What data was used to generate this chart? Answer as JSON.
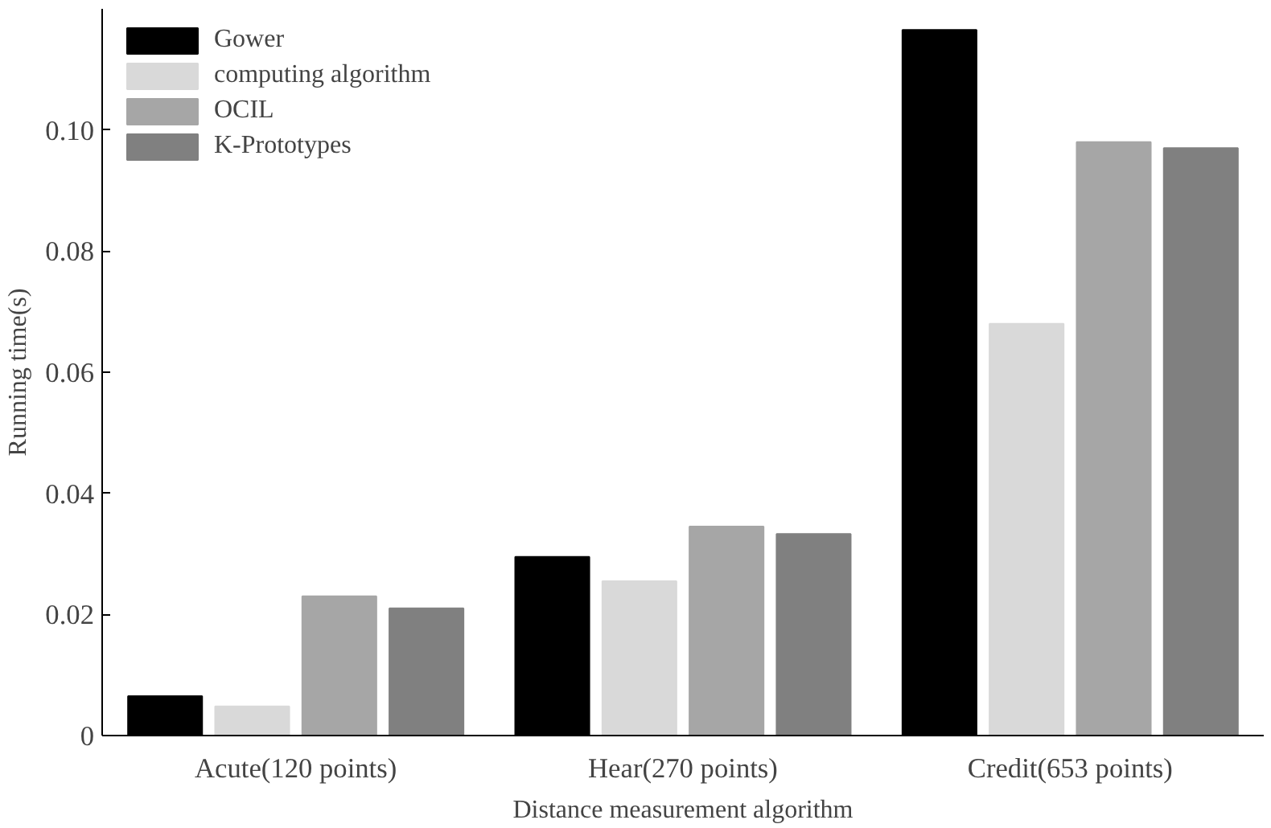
{
  "chart_data": {
    "type": "bar",
    "xlabel": "Distance measurement algorithm",
    "ylabel": "Running time(s)",
    "categories": [
      "Acute(120 points)",
      "Hear(270 points)",
      "Credit(653 points)"
    ],
    "series": [
      {
        "name": "Gower",
        "color": "#000000",
        "values": [
          0.0065,
          0.0295,
          0.1165
        ]
      },
      {
        "name": "computing algorithm",
        "color": "#d9d9d9",
        "values": [
          0.0048,
          0.0255,
          0.068
        ]
      },
      {
        "name": "OCIL",
        "color": "#a6a6a6",
        "values": [
          0.023,
          0.0345,
          0.098
        ]
      },
      {
        "name": "K-Prototypes",
        "color": "#808080",
        "values": [
          0.021,
          0.0333,
          0.097
        ]
      }
    ],
    "ylim": [
      0,
      0.12
    ],
    "yticks": [
      {
        "value": 0,
        "label": "0"
      },
      {
        "value": 0.02,
        "label": "0.02"
      },
      {
        "value": 0.04,
        "label": "0.04"
      },
      {
        "value": 0.06,
        "label": "0.06"
      },
      {
        "value": 0.08,
        "label": "0.08"
      },
      {
        "value": 0.1,
        "label": "0.10"
      }
    ],
    "grid": false,
    "legend": "top left"
  }
}
